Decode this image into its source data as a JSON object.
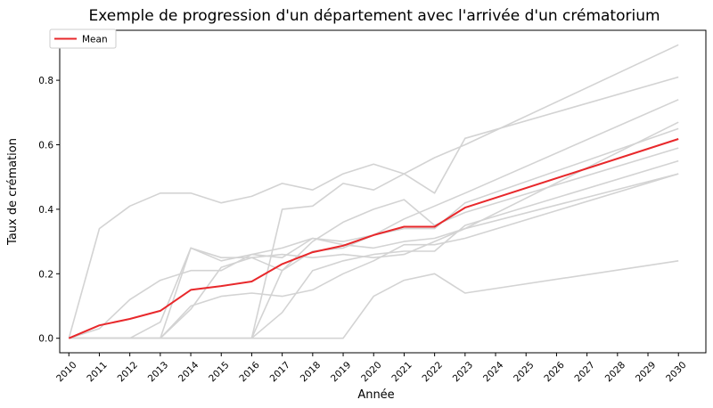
{
  "chart_data": {
    "type": "line",
    "title": "Exemple de progression d'un département avec l'arrivée d'un crématorium",
    "xlabel": "Année",
    "ylabel": "Taux de crémation",
    "x": [
      2010,
      2011,
      2012,
      2013,
      2014,
      2015,
      2016,
      2017,
      2018,
      2019,
      2020,
      2021,
      2022,
      2023,
      2024,
      2025,
      2026,
      2027,
      2028,
      2029,
      2030
    ],
    "xlim": [
      2009.7,
      2030.9
    ],
    "ylim": [
      -0.045,
      0.955
    ],
    "yticks": [
      0.0,
      0.2,
      0.4,
      0.6,
      0.8
    ],
    "grid": false,
    "legend": {
      "position": "top-left",
      "entries": [
        "Mean"
      ]
    },
    "colors": {
      "mean": "#e8282b",
      "background_series": "#d3d3d3"
    },
    "background_series": [
      {
        "x": [
          2010,
          2011,
          2012,
          2013,
          2014,
          2015,
          2016,
          2017,
          2018,
          2019,
          2020,
          2021,
          2022,
          2023,
          2030
        ],
        "values": [
          0,
          0.34,
          0.41,
          0.45,
          0.45,
          0.42,
          0.44,
          0.48,
          0.46,
          0.51,
          0.54,
          0.51,
          0.45,
          0.62,
          0.81
        ]
      },
      {
        "x": [
          2010,
          2011,
          2012,
          2013,
          2014,
          2015,
          2016,
          2017,
          2018,
          2019,
          2020,
          2021,
          2022,
          2023,
          2030
        ],
        "values": [
          0,
          0.0,
          0.0,
          0.0,
          0.0,
          0.0,
          0.0,
          0.0,
          0.0,
          0.0,
          0.13,
          0.18,
          0.2,
          0.14,
          0.24
        ]
      },
      {
        "x": [
          2010,
          2011,
          2012,
          2013,
          2014,
          2015,
          2016,
          2017,
          2018,
          2019,
          2020,
          2021,
          2022,
          2023,
          2030
        ],
        "values": [
          0,
          0.0,
          0.0,
          0.0,
          0.0,
          0.0,
          0.0,
          0.08,
          0.21,
          0.24,
          0.26,
          0.27,
          0.27,
          0.35,
          0.55
        ]
      },
      {
        "x": [
          2010,
          2011,
          2012,
          2013,
          2014,
          2015,
          2016,
          2017,
          2018,
          2019,
          2020,
          2021,
          2022,
          2023,
          2030
        ],
        "values": [
          0,
          0.0,
          0.0,
          0.0,
          0.1,
          0.13,
          0.14,
          0.13,
          0.15,
          0.2,
          0.24,
          0.29,
          0.29,
          0.31,
          0.51
        ]
      },
      {
        "x": [
          2010,
          2011,
          2012,
          2013,
          2014,
          2015,
          2016,
          2017,
          2018,
          2019,
          2020,
          2021,
          2022,
          2023,
          2030
        ],
        "values": [
          0,
          0.0,
          0.0,
          0.05,
          0.28,
          0.24,
          0.26,
          0.25,
          0.31,
          0.29,
          0.28,
          0.3,
          0.31,
          0.34,
          0.51
        ]
      },
      {
        "x": [
          2010,
          2011,
          2012,
          2013,
          2014,
          2015,
          2016,
          2017,
          2018,
          2019,
          2020,
          2021,
          2022,
          2023,
          2030
        ],
        "values": [
          0,
          0.0,
          0.0,
          0.0,
          0.09,
          0.22,
          0.25,
          0.21,
          0.3,
          0.36,
          0.4,
          0.43,
          0.35,
          0.39,
          0.59
        ]
      },
      {
        "x": [
          2010,
          2011,
          2012,
          2013,
          2014,
          2015,
          2016,
          2017,
          2018,
          2019,
          2020,
          2021,
          2022,
          2023,
          2030
        ],
        "values": [
          0,
          0.03,
          0.12,
          0.18,
          0.21,
          0.21,
          0.26,
          0.28,
          0.31,
          0.3,
          0.32,
          0.34,
          0.34,
          0.42,
          0.65
        ]
      },
      {
        "x": [
          2010,
          2011,
          2012,
          2013,
          2014,
          2015,
          2016,
          2017,
          2018,
          2019,
          2020,
          2021,
          2022,
          2023,
          2030
        ],
        "values": [
          0,
          0.0,
          0.0,
          0.0,
          0.0,
          0.0,
          0.0,
          0.4,
          0.41,
          0.48,
          0.46,
          0.51,
          0.56,
          0.6,
          0.91
        ]
      },
      {
        "x": [
          2010,
          2011,
          2012,
          2013,
          2014,
          2015,
          2016,
          2017,
          2018,
          2019,
          2020,
          2021,
          2022,
          2023,
          2030
        ],
        "values": [
          0,
          0.0,
          0.0,
          0.0,
          0.28,
          0.25,
          0.25,
          0.26,
          0.25,
          0.26,
          0.25,
          0.26,
          0.3,
          0.34,
          0.67
        ]
      },
      {
        "x": [
          2010,
          2011,
          2012,
          2013,
          2014,
          2015,
          2016,
          2017,
          2018,
          2019,
          2020,
          2021,
          2022,
          2023,
          2030
        ],
        "values": [
          0,
          0.0,
          0.0,
          0.0,
          0.0,
          0.0,
          0.0,
          0.21,
          0.27,
          0.28,
          0.32,
          0.37,
          0.41,
          0.45,
          0.74
        ]
      }
    ],
    "series": [
      {
        "name": "Mean",
        "x": [
          2010,
          2011,
          2012,
          2013,
          2014,
          2015,
          2016,
          2017,
          2018,
          2019,
          2020,
          2021,
          2022,
          2023,
          2030
        ],
        "values": [
          0.0,
          0.04,
          0.06,
          0.085,
          0.15,
          0.162,
          0.176,
          0.23,
          0.267,
          0.287,
          0.32,
          0.346,
          0.346,
          0.405,
          0.618
        ]
      }
    ]
  }
}
